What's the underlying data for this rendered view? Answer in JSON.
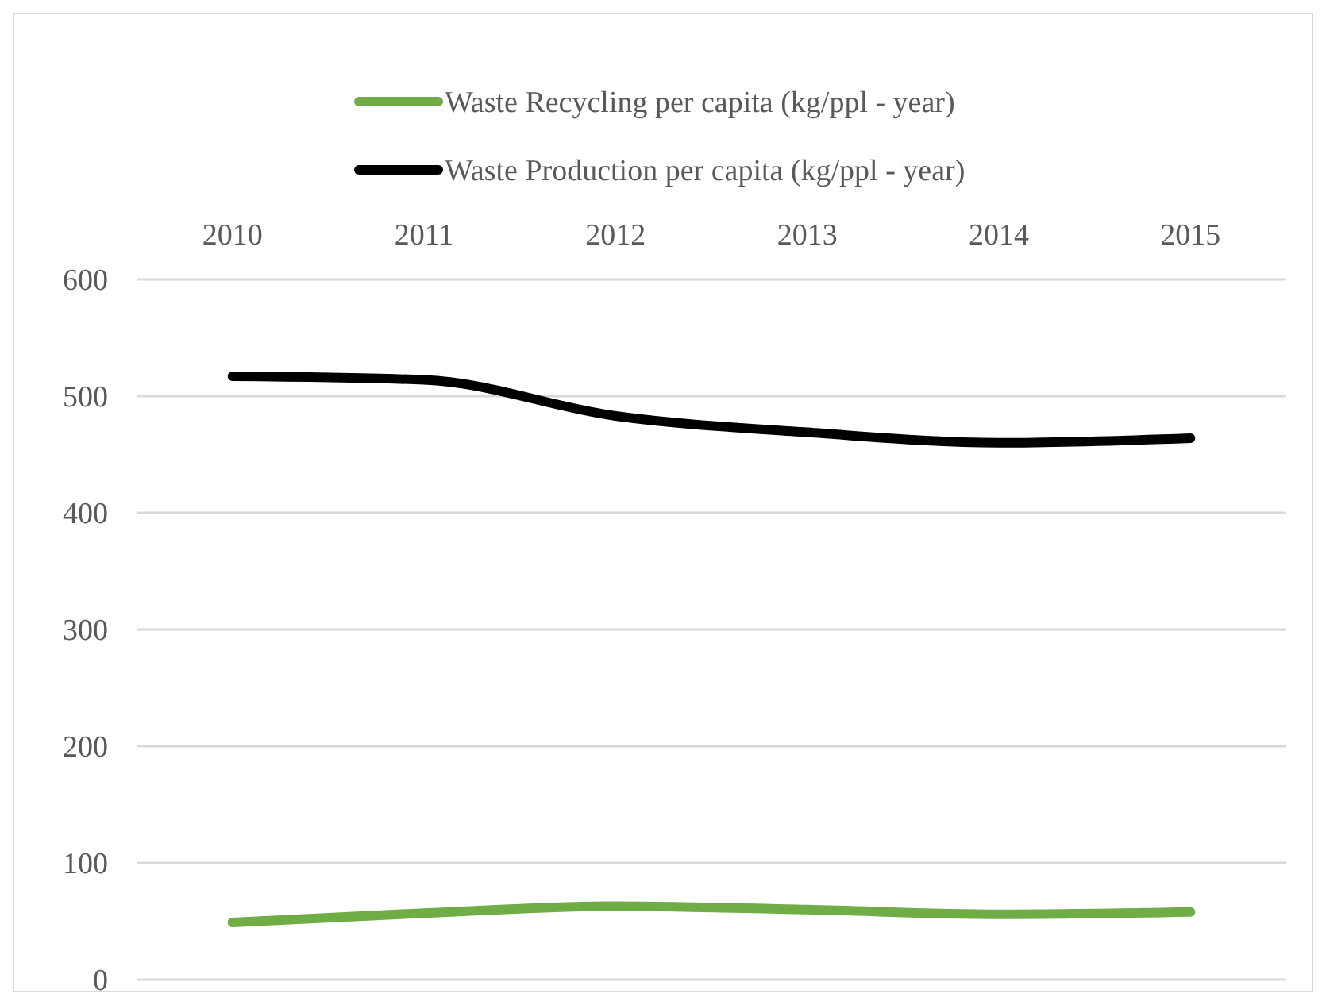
{
  "chart_data": {
    "type": "line",
    "categories": [
      "2010",
      "2011",
      "2012",
      "2013",
      "2014",
      "2015"
    ],
    "series": [
      {
        "name": "Waste Recycling per capita (kg/ppl - year)",
        "color": "#70ad47",
        "values": [
          49,
          57,
          63,
          60,
          56,
          58
        ]
      },
      {
        "name": "Waste Production per capita (kg/ppl - year)",
        "color": "#000000",
        "values": [
          517,
          514,
          483,
          469,
          460,
          464
        ]
      }
    ],
    "ylim": [
      0,
      600
    ],
    "yticks": [
      0,
      100,
      200,
      300,
      400,
      500,
      600
    ],
    "grid": "y",
    "legend": "top",
    "line_style": "solid",
    "marker": "none"
  }
}
